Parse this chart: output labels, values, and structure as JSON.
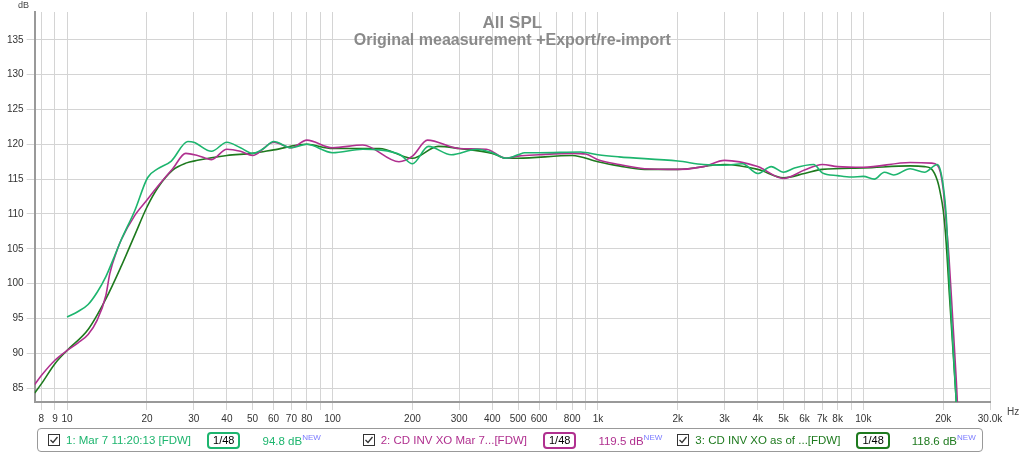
{
  "chart_data": {
    "type": "line",
    "title": "All SPL",
    "subtitle": "Original meaasurement +Export/re-import",
    "xlabel": "Hz",
    "ylabel": "dB",
    "log": "x",
    "grid": true,
    "legend": "bottom",
    "marker": "none",
    "line_style": "solid",
    "xlim": [
      7.55,
      30000
    ],
    "ylim": [
      83,
      139
    ],
    "xticks": [
      8,
      9,
      10,
      20,
      30,
      40,
      50,
      60,
      70,
      80,
      {
        "value": 90,
        "label": null
      },
      100,
      200,
      300,
      400,
      500,
      600,
      {
        "value": 700,
        "label": null
      },
      800,
      {
        "value": 900,
        "label": null
      },
      {
        "value": 1000,
        "label": "1k"
      },
      {
        "value": 2000,
        "label": "2k"
      },
      {
        "value": 3000,
        "label": "3k"
      },
      {
        "value": 4000,
        "label": "4k"
      },
      {
        "value": 5000,
        "label": "5k"
      },
      {
        "value": 6000,
        "label": "6k"
      },
      {
        "value": 7000,
        "label": "7k"
      },
      {
        "value": 8000,
        "label": "8k"
      },
      {
        "value": 9000,
        "label": null
      },
      {
        "value": 10000,
        "label": "10k"
      },
      {
        "value": 20000,
        "label": "20k"
      },
      {
        "value": 30000,
        "label": "30.0k"
      }
    ],
    "yticks": [
      85,
      90,
      95,
      100,
      105,
      110,
      115,
      120,
      125,
      130,
      135
    ],
    "annotations": [
      "1/48",
      "94.8 dB$^{NEW}$",
      "1/48",
      "119.5 dB$^{NEW}$",
      "1/48",
      "118.6 dB$^{NEW}$"
    ],
    "series": [
      {
        "name": "1: Mar 7 11:20:13 [FDW]",
        "color": "#1db56e",
        "x": [
          10,
          11,
          12,
          13,
          14,
          15,
          16,
          18,
          20.1,
          22,
          24.7,
          28.5,
          30,
          35,
          40,
          45,
          50,
          55,
          60,
          70,
          80,
          100,
          130,
          150,
          180,
          200,
          230,
          280,
          350,
          400,
          450,
          500,
          530,
          600,
          860,
          1000,
          1200,
          2000,
          2500,
          3000,
          3500,
          4000,
          4500,
          5000,
          5500,
          6500,
          7000,
          8000,
          9000,
          10000,
          11000,
          12000,
          13000,
          15000,
          17000,
          19000,
          19500,
          20000,
          20500,
          21100,
          22400
        ],
        "values": [
          95.2,
          96.0,
          97.0,
          98.8,
          101.0,
          103.7,
          106.3,
          110.5,
          115.2,
          116.5,
          117.6,
          120.4,
          120.3,
          119.0,
          120.3,
          119.5,
          118.7,
          119.4,
          120.4,
          119.5,
          120.0,
          118.8,
          119.3,
          119.2,
          118.5,
          117.2,
          119.7,
          118.5,
          119.3,
          118.8,
          118.0,
          118.5,
          118.8,
          118.8,
          118.9,
          118.5,
          118.2,
          117.6,
          117.1,
          117.0,
          117.2,
          115.8,
          116.8,
          116.0,
          116.6,
          117.1,
          115.9,
          115.5,
          115.3,
          115.4,
          115.0,
          116.0,
          115.6,
          116.5,
          116.0,
          117.1,
          116.3,
          114.0,
          110.0,
          100.0,
          83.0
        ]
      },
      {
        "name": "2: CD INV XO Mar 7...[FDW]",
        "color": "#b0308f",
        "x": [
          7.55,
          8,
          9,
          10,
          11,
          12,
          13,
          14,
          14.5,
          15.5,
          16,
          18,
          20,
          22,
          25,
          28,
          31,
          35,
          40,
          45,
          50,
          60,
          70,
          80,
          100,
          130,
          178,
          200,
          228,
          300,
          380,
          450,
          500,
          600,
          800,
          900,
          1000,
          1200,
          1500,
          2000,
          2500,
          3000,
          4000,
          5000,
          6000,
          7000,
          8000,
          10000,
          15000,
          18000,
          19000,
          19500,
          20000,
          20500,
          21000,
          21700,
          22400,
          22600
        ],
        "values": [
          85.5,
          86.8,
          89.0,
          90.4,
          91.5,
          92.7,
          94.8,
          98.3,
          101.5,
          105.0,
          106.3,
          109.8,
          112.0,
          114.0,
          116.5,
          118.7,
          118.4,
          117.8,
          119.3,
          119.0,
          118.4,
          120.3,
          119.5,
          120.6,
          119.5,
          119.9,
          117.5,
          118.3,
          120.6,
          119.4,
          119.3,
          118.0,
          118.3,
          118.5,
          118.7,
          118.6,
          117.8,
          117.1,
          116.5,
          116.4,
          116.8,
          117.7,
          116.8,
          115.1,
          116.3,
          117.1,
          116.8,
          116.7,
          117.4,
          117.3,
          117.0,
          116.0,
          113.5,
          109.0,
          104.0,
          95.0,
          86.0,
          83.0
        ]
      },
      {
        "name": "3: CD INV XO as of ...[FDW]",
        "color": "#1e7a1e",
        "x": [
          7.55,
          8,
          9,
          10,
          12,
          14,
          16,
          18,
          20,
          22,
          25,
          28,
          31,
          40,
          50,
          60,
          80,
          100,
          150,
          200,
          250,
          300,
          400,
          450,
          500,
          800,
          1000,
          1200,
          1500,
          2000,
          3000,
          4000,
          5000,
          6000,
          7000,
          10000,
          15000,
          17000,
          18000,
          19000,
          19500,
          20000,
          20500,
          21100,
          21800,
          22400
        ],
        "values": [
          84.3,
          85.6,
          88.5,
          90.4,
          93.4,
          97.8,
          102.5,
          107.0,
          111.0,
          113.8,
          116.3,
          117.3,
          117.7,
          118.4,
          118.7,
          119.2,
          120.0,
          119.4,
          119.4,
          118.0,
          119.7,
          119.4,
          118.7,
          118.0,
          118.0,
          118.4,
          117.5,
          116.9,
          116.4,
          116.4,
          117.1,
          116.4,
          115.2,
          115.8,
          116.4,
          116.6,
          116.9,
          116.8,
          116.5,
          114.8,
          113.0,
          110.5,
          106.0,
          98.3,
          90.0,
          83.0
        ]
      }
    ]
  }
}
